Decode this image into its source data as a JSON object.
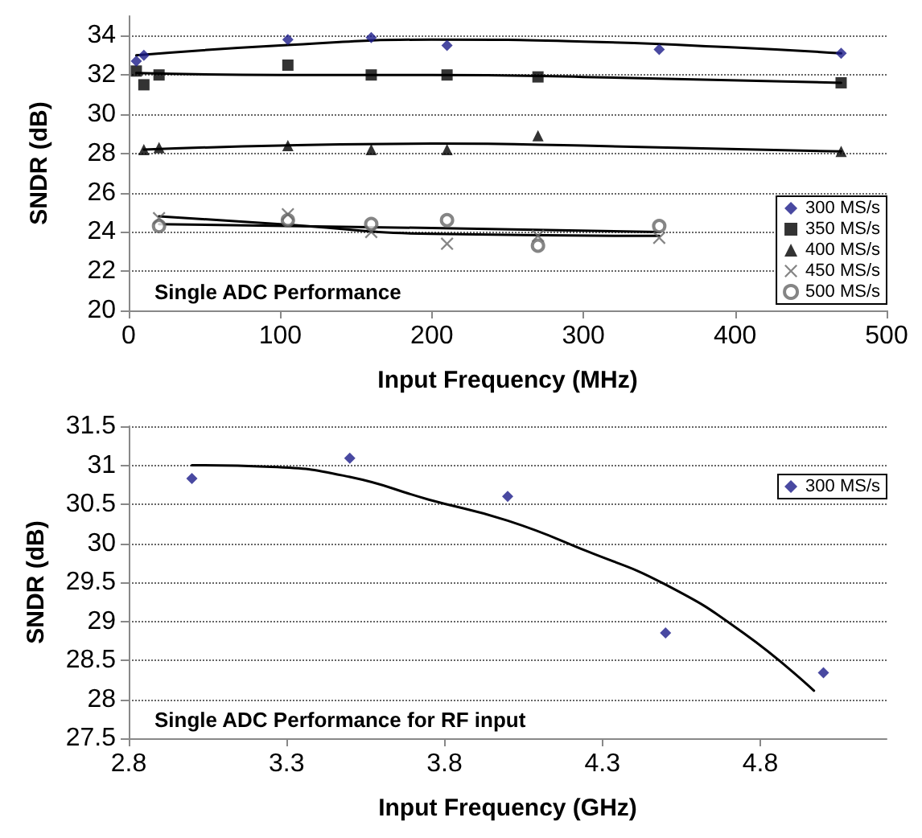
{
  "chart_data": [
    {
      "type": "scatter",
      "xlabel": "Input Frequency (MHz)",
      "ylabel": "SNDR (dB)",
      "xlim": [
        0,
        500
      ],
      "xticks": [
        0,
        100,
        200,
        300,
        400,
        500
      ],
      "ylim": [
        20,
        35
      ],
      "yticks": [
        20,
        22,
        24,
        26,
        28,
        30,
        32,
        34
      ],
      "grid": "y",
      "legend": "bottom right",
      "annotations": [
        "Single ADC Performance"
      ],
      "series": [
        {
          "name": "300 MS/s",
          "color": "#1c1c8a",
          "marker": "diamond",
          "x": [
            5,
            10,
            105,
            160,
            210,
            350,
            470
          ],
          "values": [
            32.7,
            33.0,
            33.8,
            33.9,
            33.5,
            33.3,
            33.1
          ]
        },
        {
          "name": "350 MS/s",
          "color": "#000000",
          "marker": "square",
          "x": [
            5,
            10,
            20,
            105,
            160,
            210,
            270,
            470
          ],
          "values": [
            32.2,
            31.5,
            32.0,
            32.5,
            32.0,
            32.0,
            31.9,
            31.6
          ]
        },
        {
          "name": "400 MS/s",
          "color": "#000000",
          "marker": "triangle",
          "x": [
            10,
            20,
            105,
            160,
            210,
            270,
            470
          ],
          "values": [
            28.2,
            28.3,
            28.4,
            28.2,
            28.2,
            28.9,
            28.1
          ]
        },
        {
          "name": "450 MS/s",
          "color": "#666666",
          "marker": "cross",
          "x": [
            20,
            105,
            160,
            210,
            270,
            350
          ],
          "values": [
            24.7,
            24.9,
            24.0,
            23.4,
            23.8,
            23.7
          ]
        },
        {
          "name": "500 MS/s",
          "color": "#666666",
          "marker": "circle",
          "x": [
            20,
            105,
            160,
            210,
            270,
            350
          ],
          "values": [
            24.3,
            24.6,
            24.4,
            24.6,
            23.3,
            24.3
          ]
        },
        {
          "type": "line",
          "color": "#000000",
          "marker": "none",
          "x": [
            5,
            100,
            200,
            300,
            400,
            470
          ],
          "values": [
            33.0,
            33.5,
            33.8,
            33.7,
            33.4,
            33.1
          ]
        },
        {
          "type": "line",
          "color": "#000000",
          "marker": "none",
          "x": [
            5,
            100,
            200,
            300,
            470
          ],
          "values": [
            32.1,
            32.0,
            32.0,
            31.9,
            31.6
          ]
        },
        {
          "type": "line",
          "color": "#000000",
          "marker": "none",
          "x": [
            10,
            100,
            200,
            300,
            470
          ],
          "values": [
            28.2,
            28.4,
            28.5,
            28.4,
            28.1
          ]
        },
        {
          "type": "line",
          "color": "#000000",
          "marker": "none",
          "x": [
            20,
            100,
            200,
            350
          ],
          "values": [
            24.8,
            24.4,
            23.9,
            23.8
          ]
        },
        {
          "type": "line",
          "color": "#000000",
          "marker": "none",
          "x": [
            20,
            200,
            350
          ],
          "values": [
            24.4,
            24.2,
            24.0
          ]
        }
      ]
    },
    {
      "type": "scatter",
      "xlabel": "Input Frequency (GHz)",
      "ylabel": "SNDR (dB)",
      "xlim": [
        2.8,
        5.2
      ],
      "xticks": [
        2.8,
        3.3,
        3.8,
        4.3,
        4.8
      ],
      "ylim": [
        27.5,
        31.5
      ],
      "yticks": [
        27.5,
        28,
        28.5,
        29,
        29.5,
        30,
        30.5,
        31,
        31.5
      ],
      "grid": "y",
      "legend": "top right",
      "annotations": [
        "Single ADC Performance for RF input"
      ],
      "series": [
        {
          "name": "300 MS/s",
          "color": "#1c1c8a",
          "marker": "diamond",
          "x": [
            3.0,
            3.5,
            4.0,
            4.5,
            5.0
          ],
          "values": [
            30.83,
            31.09,
            30.6,
            28.85,
            28.34
          ]
        },
        {
          "type": "line",
          "color": "#000000",
          "marker": "none",
          "x": [
            3.0,
            3.25,
            3.5,
            3.75,
            4.0,
            4.25,
            4.5,
            4.75,
            4.97
          ],
          "values": [
            31.0,
            30.98,
            30.85,
            30.56,
            30.29,
            29.9,
            29.47,
            28.84,
            28.11
          ]
        }
      ]
    }
  ]
}
